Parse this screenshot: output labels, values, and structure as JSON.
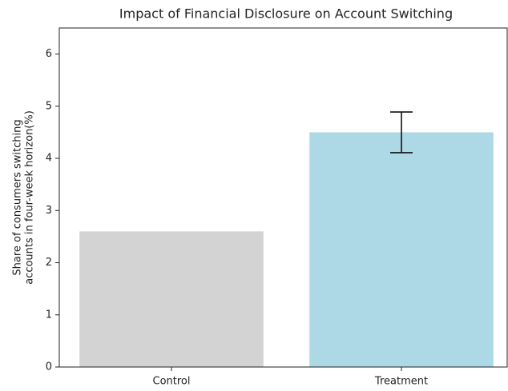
{
  "chart_data": {
    "type": "bar",
    "title": "Impact of Financial Disclosure on Account Switching",
    "ylabel": [
      "Share of consumers switching",
      "accounts in four-week horizon(%)"
    ],
    "categories": [
      "Control",
      "Treatment"
    ],
    "values": [
      2.6,
      4.5
    ],
    "errors": [
      null,
      0.39
    ],
    "colors": [
      "#d3d3d3",
      "#add8e6"
    ],
    "ylim": [
      0,
      6.5
    ],
    "yticks": [
      0,
      1,
      2,
      3,
      4,
      5,
      6
    ]
  }
}
